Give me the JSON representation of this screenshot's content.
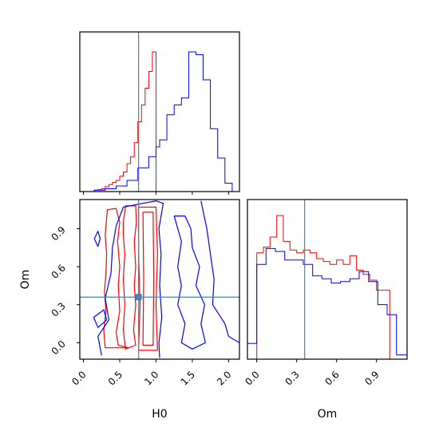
{
  "figure_type": "corner-plot",
  "colors": {
    "series_a": "#ff0000",
    "series_b": "#0000ff",
    "truth": "#4682b4"
  },
  "chart_data": [
    {
      "type": "histogram",
      "panel": "H0 marginal",
      "truth": 0.76,
      "xlim": [
        -0.05,
        2.15
      ],
      "series": [
        {
          "color": "#ff0000",
          "bin_edges": [
            0.15,
            0.2,
            0.25,
            0.3,
            0.35,
            0.4,
            0.45,
            0.5,
            0.55,
            0.6,
            0.65,
            0.7,
            0.75,
            0.8,
            0.85,
            0.9,
            0.95,
            1.0
          ],
          "counts": [
            0.01,
            0.015,
            0.02,
            0.035,
            0.05,
            0.065,
            0.08,
            0.11,
            0.14,
            0.2,
            0.25,
            0.35,
            0.5,
            0.62,
            0.74,
            0.86,
            1.0
          ]
        },
        {
          "color": "#0000ff",
          "bin_edges": [
            0.15,
            0.3,
            0.45,
            0.6,
            0.75,
            0.9,
            1.0,
            1.05,
            1.15,
            1.25,
            1.35,
            1.45,
            1.55,
            1.65,
            1.75,
            1.85,
            1.95,
            2.05
          ],
          "counts": [
            0.01,
            0.02,
            0.04,
            0.08,
            0.17,
            0.25,
            0.32,
            0.37,
            0.55,
            0.62,
            0.67,
            1.0,
            0.98,
            0.8,
            0.45,
            0.24,
            0.06
          ]
        }
      ]
    },
    {
      "type": "histogram",
      "panel": "Om marginal",
      "truth": 0.36,
      "xlim": [
        -0.07,
        1.13
      ],
      "xticks": [
        "0.0",
        "0.3",
        "0.6",
        "0.9"
      ],
      "xlabel": "Om",
      "series": [
        {
          "color": "#ff0000",
          "bin_edges": [
            0.0,
            0.05,
            0.1,
            0.15,
            0.2,
            0.25,
            0.3,
            0.35,
            0.4,
            0.45,
            0.5,
            0.55,
            0.6,
            0.65,
            0.7,
            0.75,
            0.8,
            0.85,
            0.9,
            0.95,
            1.0
          ],
          "counts": [
            0.74,
            0.78,
            0.85,
            1.0,
            0.82,
            0.76,
            0.74,
            0.76,
            0.74,
            0.7,
            0.68,
            0.66,
            0.69,
            0.66,
            0.72,
            0.62,
            0.59,
            0.55,
            0.48,
            0.48
          ]
        },
        {
          "color": "#0000ff",
          "bin_edges": [
            -0.07,
            0.0,
            0.07,
            0.14,
            0.21,
            0.28,
            0.35,
            0.42,
            0.49,
            0.56,
            0.63,
            0.7,
            0.77,
            0.84,
            0.91,
            0.98,
            1.05,
            1.13
          ],
          "counts": [
            0.11,
            0.66,
            0.77,
            0.75,
            0.69,
            0.69,
            0.66,
            0.58,
            0.56,
            0.53,
            0.54,
            0.56,
            0.61,
            0.54,
            0.38,
            0.31,
            0.03
          ]
        }
      ]
    },
    {
      "type": "contour",
      "panel": "H0 vs Om",
      "truth": {
        "x": 0.76,
        "y": 0.36
      },
      "xlim": [
        -0.05,
        2.15
      ],
      "ylim": [
        -0.13,
        1.13
      ],
      "xticks": [
        "0.0",
        "0.5",
        "1.0",
        "1.5",
        "2.0"
      ],
      "yticks": [
        "0.0",
        "0.3",
        "0.6",
        "0.9"
      ],
      "xlabel": "H0",
      "ylabel": "Om",
      "contours": [
        {
          "color": "#ff0000",
          "points": [
            [
              0.3,
              -0.04
            ],
            [
              0.28,
              0.1
            ],
            [
              0.31,
              0.25
            ],
            [
              0.29,
              0.4
            ],
            [
              0.31,
              0.55
            ],
            [
              0.32,
              0.7
            ],
            [
              0.3,
              0.85
            ],
            [
              0.33,
              1.05
            ],
            [
              0.45,
              1.06
            ],
            [
              0.5,
              0.95
            ],
            [
              0.47,
              0.8
            ],
            [
              0.5,
              0.6
            ],
            [
              0.48,
              0.45
            ],
            [
              0.5,
              0.25
            ],
            [
              0.45,
              0.08
            ],
            [
              0.48,
              -0.02
            ],
            [
              0.62,
              -0.04
            ],
            [
              0.3,
              -0.04
            ]
          ]
        },
        {
          "color": "#ff0000",
          "points": [
            [
              0.55,
              0.95
            ],
            [
              0.58,
              1.08
            ],
            [
              0.72,
              1.08
            ],
            [
              0.73,
              0.95
            ],
            [
              0.7,
              0.8
            ],
            [
              0.72,
              0.6
            ],
            [
              0.7,
              0.45
            ],
            [
              0.72,
              0.3
            ],
            [
              0.69,
              0.1
            ],
            [
              0.72,
              -0.02
            ],
            [
              0.58,
              -0.05
            ],
            [
              0.55,
              0.1
            ],
            [
              0.57,
              0.3
            ],
            [
              0.55,
              0.5
            ],
            [
              0.57,
              0.7
            ],
            [
              0.55,
              0.85
            ],
            [
              0.55,
              0.95
            ]
          ]
        },
        {
          "color": "#ff0000",
          "points": [
            [
              0.76,
              1.07
            ],
            [
              1.0,
              1.07
            ],
            [
              1.02,
              0.7
            ],
            [
              1.0,
              0.3
            ],
            [
              1.02,
              -0.06
            ],
            [
              0.76,
              -0.06
            ],
            [
              0.78,
              0.3
            ],
            [
              0.76,
              0.7
            ],
            [
              0.76,
              1.07
            ]
          ]
        },
        {
          "color": "#ff0000",
          "points": [
            [
              0.82,
              1.03
            ],
            [
              0.96,
              1.03
            ],
            [
              0.97,
              0.5
            ],
            [
              0.96,
              -0.02
            ],
            [
              0.82,
              -0.02
            ],
            [
              0.83,
              0.5
            ],
            [
              0.82,
              1.03
            ]
          ]
        },
        {
          "color": "#0000ff",
          "points": [
            [
              0.25,
              -0.1
            ],
            [
              0.2,
              0.05
            ],
            [
              0.35,
              0.18
            ],
            [
              0.3,
              0.35
            ],
            [
              0.38,
              0.55
            ],
            [
              0.4,
              0.75
            ],
            [
              0.45,
              0.92
            ],
            [
              0.55,
              1.07
            ],
            [
              1.0,
              1.12
            ],
            [
              1.1,
              1.1
            ],
            [
              1.04,
              0.9
            ],
            [
              1.07,
              0.7
            ],
            [
              1.05,
              0.45
            ],
            [
              1.08,
              0.2
            ],
            [
              1.04,
              0.0
            ],
            [
              1.05,
              -0.12
            ]
          ]
        },
        {
          "color": "#0000ff",
          "points": [
            [
              1.25,
              1.0
            ],
            [
              1.35,
              0.8
            ],
            [
              1.3,
              0.6
            ],
            [
              1.35,
              0.45
            ],
            [
              1.3,
              0.3
            ],
            [
              1.4,
              0.15
            ],
            [
              1.35,
              0.0
            ],
            [
              1.5,
              -0.05
            ],
            [
              1.68,
              0.0
            ],
            [
              1.62,
              0.15
            ],
            [
              1.67,
              0.3
            ],
            [
              1.55,
              0.45
            ],
            [
              1.6,
              0.6
            ],
            [
              1.5,
              0.75
            ],
            [
              1.48,
              0.9
            ],
            [
              1.4,
              1.0
            ],
            [
              1.25,
              1.0
            ]
          ]
        },
        {
          "color": "#0000ff",
          "points": [
            [
              1.62,
              1.12
            ],
            [
              1.7,
              0.9
            ],
            [
              1.75,
              0.7
            ],
            [
              1.8,
              0.5
            ],
            [
              1.78,
              0.3
            ],
            [
              1.95,
              0.15
            ],
            [
              2.0,
              0.05
            ],
            [
              2.15,
              0.0
            ]
          ]
        },
        {
          "color": "#0000ff",
          "points": [
            [
              0.15,
              0.82
            ],
            [
              0.2,
              0.88
            ],
            [
              0.23,
              0.82
            ],
            [
              0.2,
              0.76
            ],
            [
              0.15,
              0.82
            ]
          ]
        },
        {
          "color": "#0000ff",
          "points": [
            [
              0.14,
              0.2
            ],
            [
              0.28,
              0.26
            ],
            [
              0.32,
              0.18
            ],
            [
              0.2,
              0.12
            ],
            [
              0.14,
              0.2
            ]
          ]
        }
      ]
    }
  ]
}
